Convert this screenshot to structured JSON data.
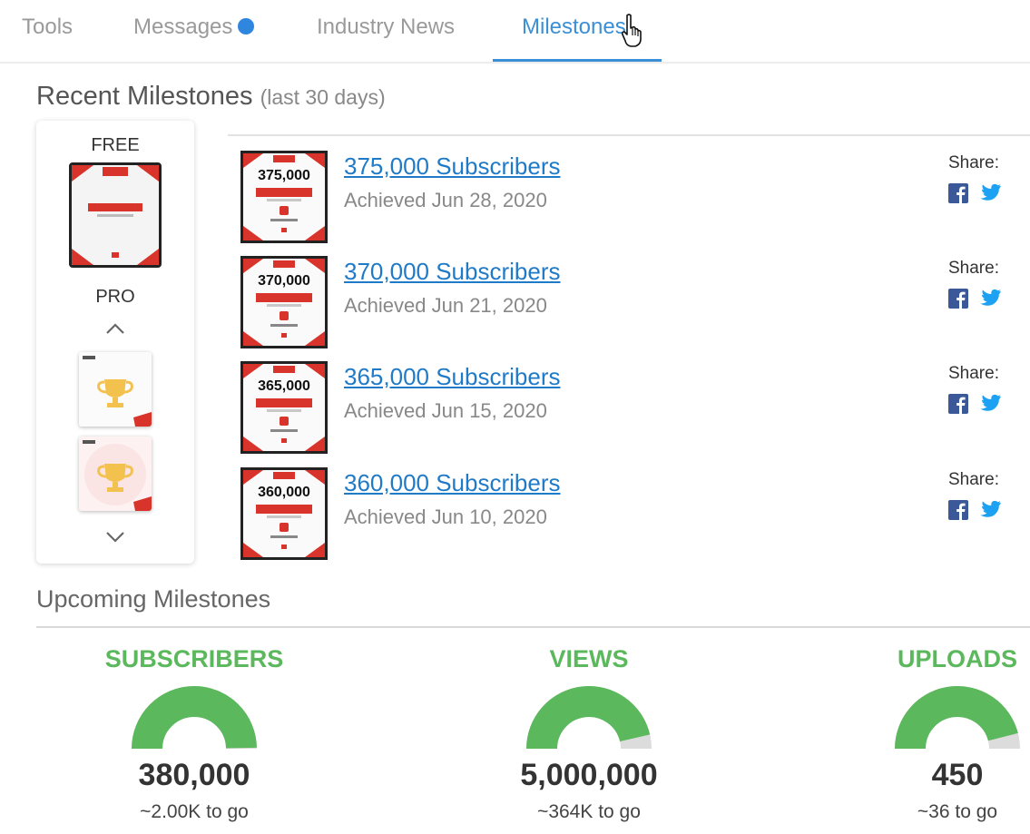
{
  "tabs": [
    {
      "label": "Tools"
    },
    {
      "label": "Messages"
    },
    {
      "label": "Industry News"
    },
    {
      "label": "Milestones"
    }
  ],
  "recent": {
    "title": "Recent Milestones",
    "subtitle": "(last 30 days)"
  },
  "panel": {
    "free_label": "FREE",
    "pro_label": "PRO"
  },
  "milestones": [
    {
      "cert_number": "375,000",
      "title": "375,000 Subscribers",
      "date": "Achieved Jun 28, 2020",
      "share_label": "Share:"
    },
    {
      "cert_number": "370,000",
      "title": "370,000 Subscribers",
      "date": "Achieved Jun 21, 2020",
      "share_label": "Share:"
    },
    {
      "cert_number": "365,000",
      "title": "365,000 Subscribers",
      "date": "Achieved Jun 15, 2020",
      "share_label": "Share:"
    },
    {
      "cert_number": "360,000",
      "title": "360,000 Subscribers",
      "date": "Achieved Jun 10, 2020",
      "share_label": "Share:"
    }
  ],
  "upcoming": {
    "title": "Upcoming Milestones",
    "gauges": [
      {
        "label": "SUBSCRIBERS",
        "value": "380,000",
        "to_go": "~2.00K to go",
        "progress": 0.995
      },
      {
        "label": "VIEWS",
        "value": "5,000,000",
        "to_go": "~364K to go",
        "progress": 0.927
      },
      {
        "label": "UPLOADS",
        "value": "450",
        "to_go": "~36 to go",
        "progress": 0.92
      }
    ]
  },
  "colors": {
    "accent_blue": "#3a8fd6",
    "link_blue": "#1f7ac7",
    "gauge_green": "#5cb85c",
    "gauge_track": "#dcdcdc",
    "cert_red": "#d9342b",
    "facebook": "#3b5998",
    "twitter": "#1da1f2"
  }
}
